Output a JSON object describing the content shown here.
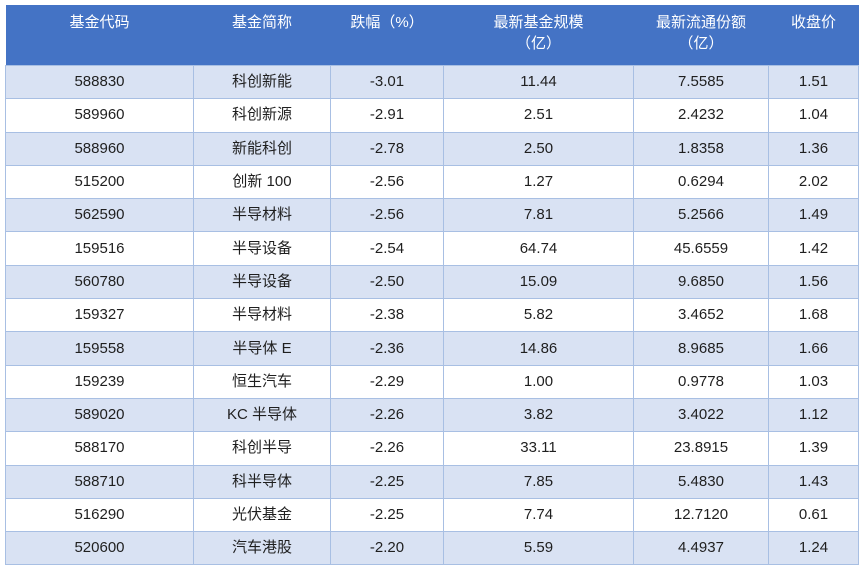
{
  "chart_data": {
    "type": "table",
    "title": "",
    "columns": [
      "基金代码",
      "基金简称",
      "跌幅（%）",
      "最新基金规模（亿）",
      "最新流通份额（亿）",
      "收盘价"
    ],
    "rows": [
      [
        "588830",
        "科创新能",
        "-3.01",
        "11.44",
        "7.5585",
        "1.51"
      ],
      [
        "589960",
        "科创新源",
        "-2.91",
        "2.51",
        "2.4232",
        "1.04"
      ],
      [
        "588960",
        "新能科创",
        "-2.78",
        "2.50",
        "1.8358",
        "1.36"
      ],
      [
        "515200",
        "创新 100",
        "-2.56",
        "1.27",
        "0.6294",
        "2.02"
      ],
      [
        "562590",
        "半导材料",
        "-2.56",
        "7.81",
        "5.2566",
        "1.49"
      ],
      [
        "159516",
        "半导设备",
        "-2.54",
        "64.74",
        "45.6559",
        "1.42"
      ],
      [
        "560780",
        "半导设备",
        "-2.50",
        "15.09",
        "9.6850",
        "1.56"
      ],
      [
        "159327",
        "半导材料",
        "-2.38",
        "5.82",
        "3.4652",
        "1.68"
      ],
      [
        "159558",
        "半导体 E",
        "-2.36",
        "14.86",
        "8.9685",
        "1.66"
      ],
      [
        "159239",
        "恒生汽车",
        "-2.29",
        "1.00",
        "0.9778",
        "1.03"
      ],
      [
        "589020",
        "KC 半导体",
        "-2.26",
        "3.82",
        "3.4022",
        "1.12"
      ],
      [
        "588170",
        "科创半导",
        "-2.26",
        "33.11",
        "23.8915",
        "1.39"
      ],
      [
        "588710",
        "科半导体",
        "-2.25",
        "7.85",
        "5.4830",
        "1.43"
      ],
      [
        "516290",
        "光伏基金",
        "-2.25",
        "7.74",
        "12.7120",
        "0.61"
      ],
      [
        "520600",
        "汽车港股",
        "-2.20",
        "5.59",
        "4.4937",
        "1.24"
      ]
    ]
  },
  "table": {
    "headers": [
      {
        "label": "基金代码",
        "sub": ""
      },
      {
        "label": "基金简称",
        "sub": ""
      },
      {
        "label": "跌幅（%）",
        "sub": ""
      },
      {
        "label": "最新基金规模",
        "sub": "（亿）"
      },
      {
        "label": "最新流通份额",
        "sub": "（亿）"
      },
      {
        "label": "收盘价",
        "sub": ""
      }
    ],
    "colors": {
      "header_bg": "#4473C5",
      "header_text": "#FFFFFF",
      "band_bg": "#D9E2F3",
      "border": "#A8BFE3",
      "cell_text": "#1F1F1F"
    }
  }
}
